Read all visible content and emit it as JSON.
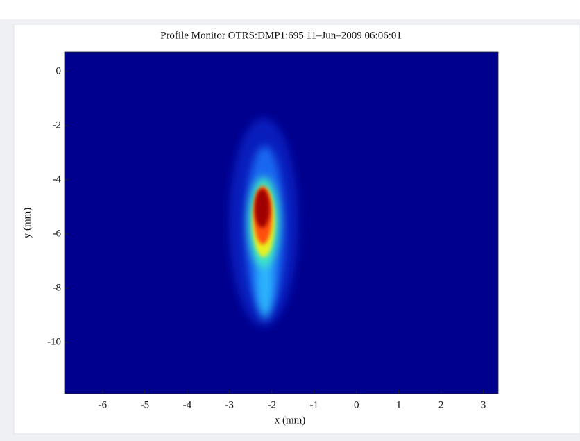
{
  "chart_data": {
    "type": "image",
    "title": "Profile Monitor OTRS:DMP1:695 11–Jun–2009 06:06:01",
    "x_label": "x  (mm)",
    "y_label": "y  (mm)",
    "xlim": [
      -6.9,
      3.35
    ],
    "ylim": [
      -11.9,
      0.72
    ],
    "xticks": [
      -6,
      -5,
      -4,
      -3,
      -2,
      -1,
      0,
      1,
      2,
      3
    ],
    "yticks": [
      0,
      -2,
      -4,
      -6,
      -8,
      -10
    ]
  }
}
